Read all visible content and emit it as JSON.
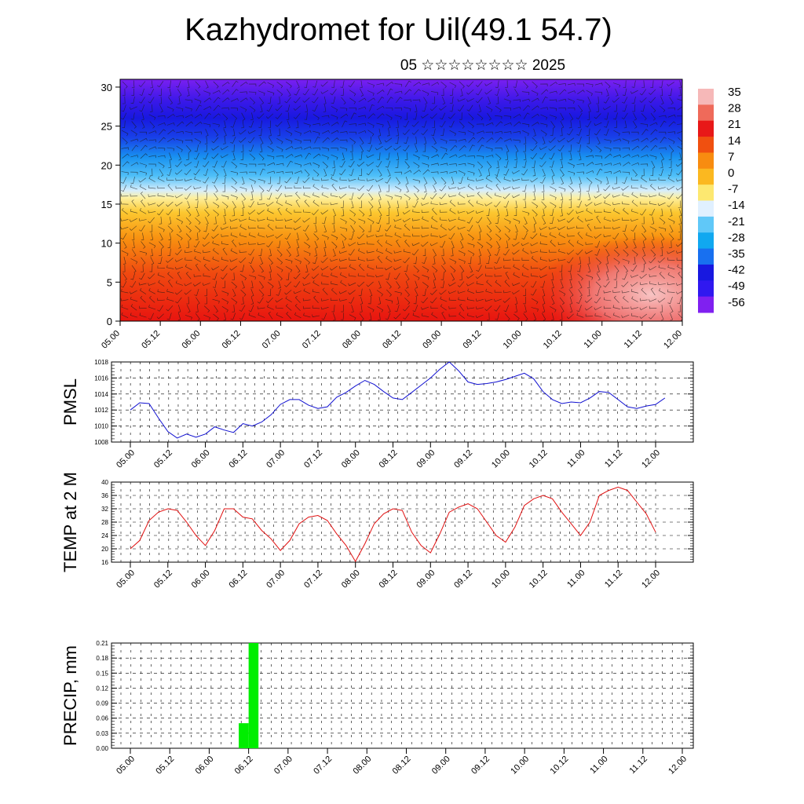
{
  "title": "Kazhydromet for Uil(49.1 54.7)",
  "subtitle": "05 ☆☆☆☆☆☆☆☆ 2025",
  "time_labels": [
    "05.00",
    "05.12",
    "06.00",
    "06.12",
    "07.00",
    "07.12",
    "08.00",
    "08.12",
    "09.00",
    "09.12",
    "10.00",
    "10.12",
    "11.00",
    "11.12",
    "12.00"
  ],
  "colors": {
    "pmsl_line": "#1010d0",
    "temp_line": "#e01010",
    "precip_bar": "#00ee00"
  },
  "chart_data": [
    {
      "type": "heatmap",
      "description_note": "",
      "title": "",
      "xlabel": "",
      "ylabel": "",
      "x_ticks": [
        "05.00",
        "05.12",
        "06.00",
        "06.12",
        "07.00",
        "07.12",
        "08.00",
        "08.12",
        "09.00",
        "09.12",
        "10.00",
        "10.12",
        "11.00",
        "11.12",
        "12.00"
      ],
      "y_ticks": [
        0,
        5,
        10,
        15,
        20,
        25,
        30
      ],
      "ylim": [
        0,
        31
      ],
      "colorbar_labels": [
        "35",
        "28",
        "21",
        "14",
        "7",
        "0",
        "-7",
        "-14",
        "-21",
        "-28",
        "-35",
        "-42",
        "-49",
        "-56"
      ],
      "colorbar_colors": [
        "#f6b8b8",
        "#ef6a5a",
        "#e81818",
        "#f05010",
        "#f88c10",
        "#fbb820",
        "#fde870",
        "#e0f0ff",
        "#60c8f8",
        "#10a8f0",
        "#1870f0",
        "#1818e0",
        "#3018f0",
        "#8020f0"
      ]
    },
    {
      "type": "line",
      "ylabel": "PMSL",
      "ylim": [
        1008,
        1018
      ],
      "y_ticks": [
        "1008",
        "1010",
        "1012",
        "1014",
        "1016",
        "1018"
      ],
      "x_ticks": [
        "05.00",
        "05.12",
        "06.00",
        "06.12",
        "07.00",
        "07.12",
        "08.00",
        "08.12",
        "09.00",
        "09.12",
        "10.00",
        "10.12",
        "11.00",
        "11.12",
        "12.00"
      ],
      "series": [
        {
          "values": [
            1012.0,
            1012.9,
            1012.8,
            1011.0,
            1009.3,
            1008.5,
            1009.0,
            1008.6,
            1009.0,
            1009.9,
            1009.5,
            1009.2,
            1010.3,
            1010.0,
            1010.5,
            1011.4,
            1012.7,
            1013.3,
            1013.3,
            1012.6,
            1012.2,
            1012.4,
            1013.6,
            1014.2,
            1015.0,
            1015.7,
            1015.2,
            1014.3,
            1013.5,
            1013.3,
            1014.2,
            1015.1,
            1016.0,
            1017.1,
            1018.0,
            1016.9,
            1015.5,
            1015.2,
            1015.3,
            1015.5,
            1015.8,
            1016.2,
            1016.6,
            1015.9,
            1014.3,
            1013.3,
            1012.8,
            1013.0,
            1012.9,
            1013.5,
            1014.3,
            1014.2,
            1013.3,
            1012.4,
            1012.2,
            1012.5,
            1012.7,
            1013.5
          ]
        }
      ]
    },
    {
      "type": "line",
      "ylabel": "TEMP at 2 M",
      "ylim": [
        16,
        40
      ],
      "y_ticks": [
        "16",
        "20",
        "24",
        "28",
        "32",
        "36",
        "40"
      ],
      "x_ticks": [
        "05.00",
        "05.12",
        "06.00",
        "06.12",
        "07.00",
        "07.12",
        "08.00",
        "08.12",
        "09.00",
        "09.12",
        "10.00",
        "10.12",
        "11.00",
        "11.12",
        "12.00"
      ],
      "series": [
        {
          "values": [
            20.0,
            22.5,
            28.5,
            31.0,
            32.0,
            31.5,
            28.0,
            24.0,
            21.0,
            25.5,
            32.0,
            32.0,
            29.5,
            29.0,
            25.5,
            23.0,
            19.5,
            22.5,
            27.5,
            29.5,
            30.0,
            28.5,
            24.5,
            21.0,
            16.2,
            21.5,
            27.5,
            30.5,
            32.0,
            31.5,
            25.0,
            21.0,
            18.8,
            24.5,
            31.0,
            32.5,
            33.5,
            32.0,
            28.0,
            24.0,
            22.0,
            26.5,
            33.0,
            35.0,
            36.0,
            35.0,
            31.0,
            27.5,
            24.0,
            28.0,
            36.0,
            37.5,
            38.5,
            37.5,
            34.0,
            30.5,
            25.0
          ]
        }
      ]
    },
    {
      "type": "bar",
      "ylabel": "PRECIP, mm",
      "ylim": [
        0,
        0.21
      ],
      "y_ticks": [
        "0.00",
        "0.03",
        "0.06",
        "0.09",
        "0.12",
        "0.15",
        "0.18",
        "0.21"
      ],
      "x_ticks": [
        "05.00",
        "05.12",
        "06.00",
        "06.12",
        "07.00",
        "07.12",
        "08.00",
        "08.12",
        "09.00",
        "09.12",
        "10.00",
        "10.12",
        "11.00",
        "11.12",
        "12.00"
      ],
      "bars": [
        {
          "start_step": 11,
          "value": 0.05
        },
        {
          "start_step": 12,
          "value": 0.21
        }
      ]
    }
  ]
}
